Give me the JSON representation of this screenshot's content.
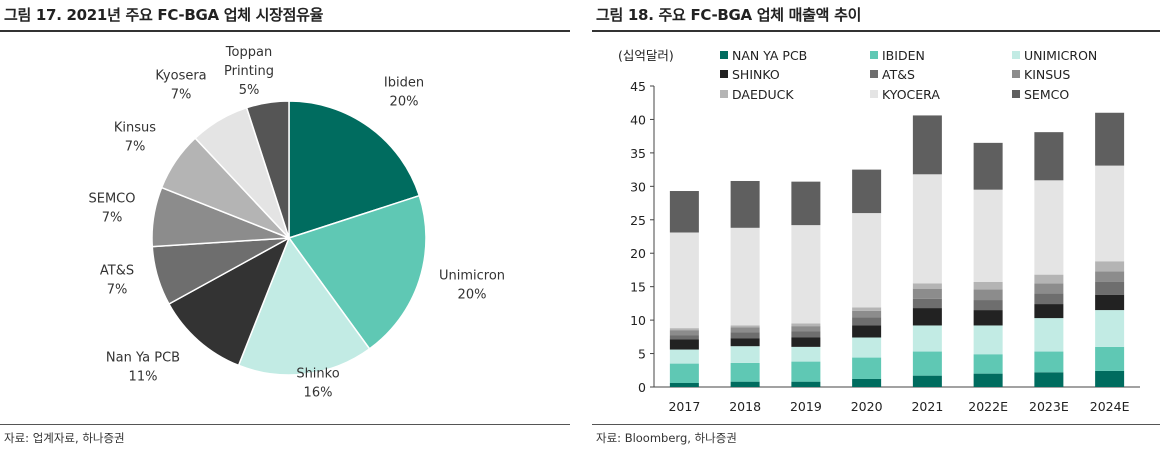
{
  "left": {
    "title": "그림 17. 2021년 주요 FC-BGA 업체 시장점유율",
    "source": "자료: 업계자료, 하나증권"
  },
  "right": {
    "title": "그림 18. 주요 FC-BGA 업체 매출액 추이",
    "source": "자료: Bloomberg, 하나증권"
  },
  "chart_data": [
    {
      "type": "pie",
      "title": "그림 17. 2021년 주요 FC-BGA 업체 시장점유율",
      "slices": [
        {
          "name": "Ibiden",
          "value": 20,
          "label": "20%",
          "color": "#006c5f"
        },
        {
          "name": "Unimicron",
          "value": 20,
          "label": "20%",
          "color": "#5fc8b4"
        },
        {
          "name": "Shinko",
          "value": 16,
          "label": "16%",
          "color": "#c2ebe4"
        },
        {
          "name": "Nan Ya PCB",
          "value": 11,
          "label": "11%",
          "color": "#333333"
        },
        {
          "name": "AT&S",
          "value": 7,
          "label": "7%",
          "color": "#6e6e6e"
        },
        {
          "name": "SEMCO",
          "value": 7,
          "label": "7%",
          "color": "#8c8c8c"
        },
        {
          "name": "Kinsus",
          "value": 7,
          "label": "7%",
          "color": "#b4b4b4"
        },
        {
          "name": "Kyosera",
          "value": 7,
          "label": "7%",
          "color": "#e4e4e4"
        },
        {
          "name": "Toppan Printing",
          "value": 5,
          "label": "5%",
          "color": "#555555"
        }
      ]
    },
    {
      "type": "bar",
      "stacked": true,
      "title": "그림 18. 주요 FC-BGA 업체 매출액 추이",
      "unit_label": "(십억달러)",
      "categories": [
        "2017",
        "2018",
        "2019",
        "2020",
        "2021",
        "2022E",
        "2023E",
        "2024E"
      ],
      "ylim": [
        0,
        45
      ],
      "yticks": [
        0,
        5,
        10,
        15,
        20,
        25,
        30,
        35,
        40,
        45
      ],
      "legend_position": "top",
      "series": [
        {
          "name": "NAN YA PCB",
          "color": "#006c5f",
          "values": [
            0.6,
            0.8,
            0.8,
            1.2,
            1.7,
            2.0,
            2.2,
            2.4
          ]
        },
        {
          "name": "IBIDEN",
          "color": "#5fc8b4",
          "values": [
            2.9,
            2.8,
            3.0,
            3.2,
            3.6,
            2.9,
            3.1,
            3.6
          ]
        },
        {
          "name": "UNIMICRON",
          "color": "#c2ebe4",
          "values": [
            2.1,
            2.5,
            2.2,
            3.0,
            3.9,
            4.3,
            5.0,
            5.5
          ]
        },
        {
          "name": "SHINKO",
          "color": "#222222",
          "values": [
            1.5,
            1.2,
            1.4,
            1.8,
            2.6,
            2.3,
            2.1,
            2.3
          ]
        },
        {
          "name": "AT&S",
          "color": "#6e6e6e",
          "values": [
            0.6,
            0.9,
            0.9,
            1.2,
            1.4,
            1.5,
            1.6,
            1.9
          ]
        },
        {
          "name": "KINSUS",
          "color": "#8c8c8c",
          "values": [
            0.8,
            0.7,
            0.8,
            1.0,
            1.5,
            1.6,
            1.5,
            1.6
          ]
        },
        {
          "name": "DAEDUCK",
          "color": "#b4b4b4",
          "values": [
            0.3,
            0.3,
            0.4,
            0.5,
            0.8,
            1.1,
            1.3,
            1.5
          ]
        },
        {
          "name": "KYOCERA",
          "color": "#e4e4e4",
          "values": [
            14.3,
            14.6,
            14.7,
            14.1,
            16.3,
            13.8,
            14.1,
            14.3
          ]
        },
        {
          "name": "SEMCO",
          "color": "#5f5f5f",
          "values": [
            6.2,
            7.0,
            6.5,
            6.5,
            8.8,
            7.0,
            7.2,
            7.9
          ]
        }
      ]
    }
  ]
}
